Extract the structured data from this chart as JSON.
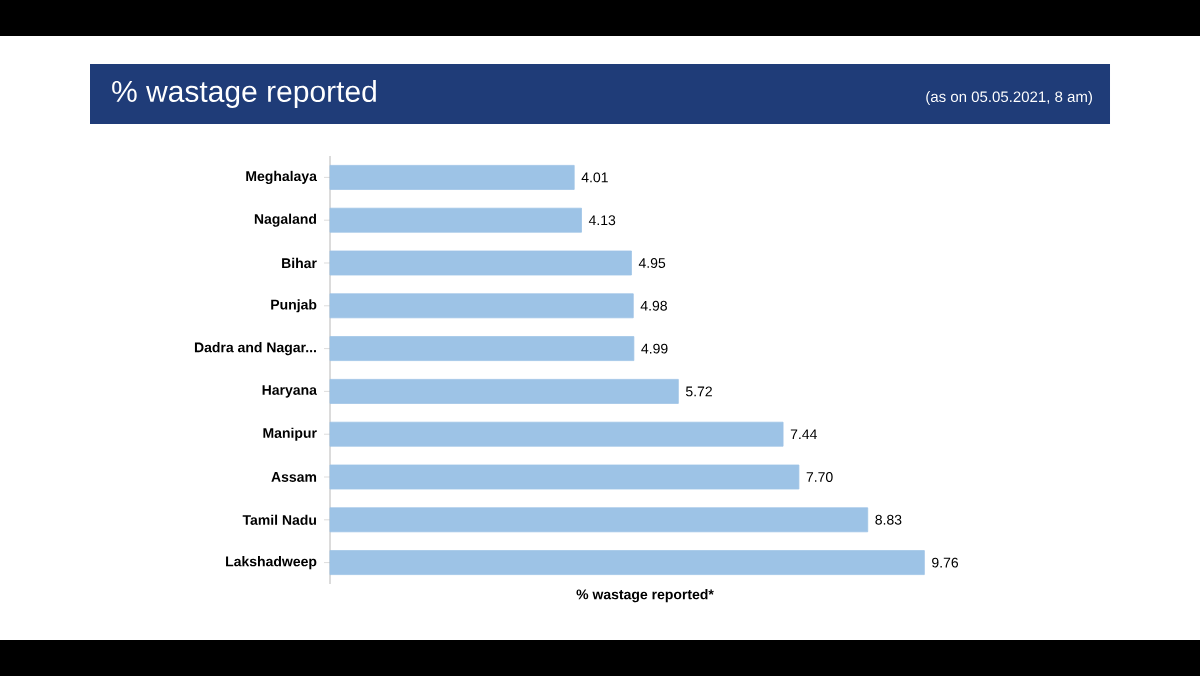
{
  "chart_data": {
    "type": "bar",
    "orientation": "horizontal",
    "title": "% wastage reported",
    "subtitle": "(as on 05.05.2021, 8 am)",
    "xlabel": "% wastage reported*",
    "categories": [
      "Meghalaya",
      "Nagaland",
      "Bihar",
      "Punjab",
      "Dadra and Nagar...",
      "Haryana",
      "Manipur",
      "Assam",
      "Tamil Nadu",
      "Lakshadweep"
    ],
    "values": [
      4.01,
      4.13,
      4.95,
      4.98,
      4.99,
      5.72,
      7.44,
      7.7,
      8.83,
      9.76
    ],
    "value_labels": [
      "4.01",
      "4.13",
      "4.95",
      "4.98",
      "4.99",
      "5.72",
      "7.44",
      "7.70",
      "8.83",
      "9.76"
    ],
    "color": "#9dc3e6"
  }
}
